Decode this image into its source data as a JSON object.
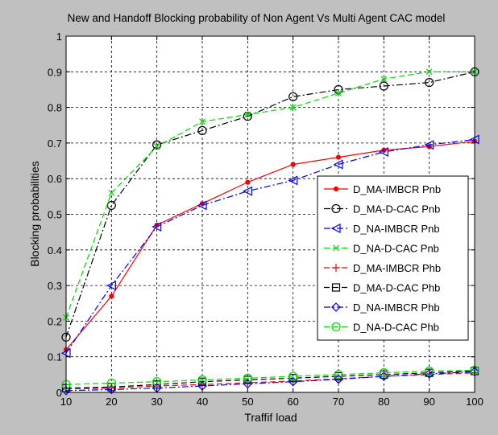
{
  "chart_data": {
    "type": "line",
    "title": "New and Handoff Blocking probability of Non Agent Vs Multi Agent CAC model",
    "xlabel": "Traffif load",
    "ylabel": "Blocking probabilities",
    "xlim": [
      10,
      100
    ],
    "ylim": [
      0,
      1
    ],
    "xticks": [
      "10",
      "20",
      "30",
      "40",
      "50",
      "60",
      "70",
      "80",
      "90",
      "100"
    ],
    "yticks": [
      "0",
      "0.1",
      "0.2",
      "0.3",
      "0.4",
      "0.5",
      "0.6",
      "0.7",
      "0.8",
      "0.9",
      "1"
    ],
    "grid": true,
    "legend_position": "right",
    "figure_background": "#c0c0c0",
    "plot_background": "#ffffff",
    "x": [
      10,
      20,
      30,
      40,
      50,
      60,
      70,
      80,
      90,
      100
    ],
    "series": [
      {
        "name": "D_MA-IMBCR Pnb",
        "color": "#ff0000",
        "line": "solid",
        "marker": "dot",
        "values": [
          0.12,
          0.27,
          0.47,
          0.53,
          0.59,
          0.64,
          0.66,
          0.68,
          0.69,
          0.705
        ]
      },
      {
        "name": "D_MA-D-CAC Pnb",
        "color": "#000000",
        "line": "dashdot",
        "marker": "circle",
        "values": [
          0.155,
          0.525,
          0.695,
          0.735,
          0.775,
          0.83,
          0.85,
          0.86,
          0.87,
          0.9
        ]
      },
      {
        "name": "D_NA-IMBCR Pnb",
        "color": "#0000ff",
        "line": "dashdot",
        "marker": "triangle-left",
        "values": [
          0.11,
          0.3,
          0.465,
          0.525,
          0.565,
          0.595,
          0.64,
          0.675,
          0.695,
          0.71
        ]
      },
      {
        "name": "D_NA-D-CAC Pnb",
        "color": "#00dd00",
        "line": "dashed",
        "marker": "x",
        "values": [
          0.21,
          0.56,
          0.69,
          0.76,
          0.78,
          0.8,
          0.84,
          0.88,
          0.9,
          0.9
        ]
      },
      {
        "name": "D_MA-IMBCR Phb",
        "color": "#ff0000",
        "line": "dashed",
        "marker": "plus",
        "values": [
          0.01,
          0.012,
          0.018,
          0.022,
          0.027,
          0.032,
          0.038,
          0.045,
          0.05,
          0.055
        ]
      },
      {
        "name": "D_MA-D-CAC Phb",
        "color": "#000000",
        "line": "dashed",
        "marker": "square",
        "values": [
          0.012,
          0.015,
          0.022,
          0.03,
          0.035,
          0.04,
          0.045,
          0.05,
          0.055,
          0.06
        ]
      },
      {
        "name": "D_NA-IMBCR Phb",
        "color": "#0000ff",
        "line": "dashdot",
        "marker": "diamond",
        "values": [
          0.005,
          0.008,
          0.012,
          0.018,
          0.024,
          0.03,
          0.037,
          0.045,
          0.052,
          0.058
        ]
      },
      {
        "name": "D_NA-D-CAC Phb",
        "color": "#00dd00",
        "line": "dashed",
        "marker": "circle",
        "values": [
          0.022,
          0.026,
          0.03,
          0.035,
          0.04,
          0.045,
          0.05,
          0.055,
          0.06,
          0.062
        ]
      }
    ]
  }
}
